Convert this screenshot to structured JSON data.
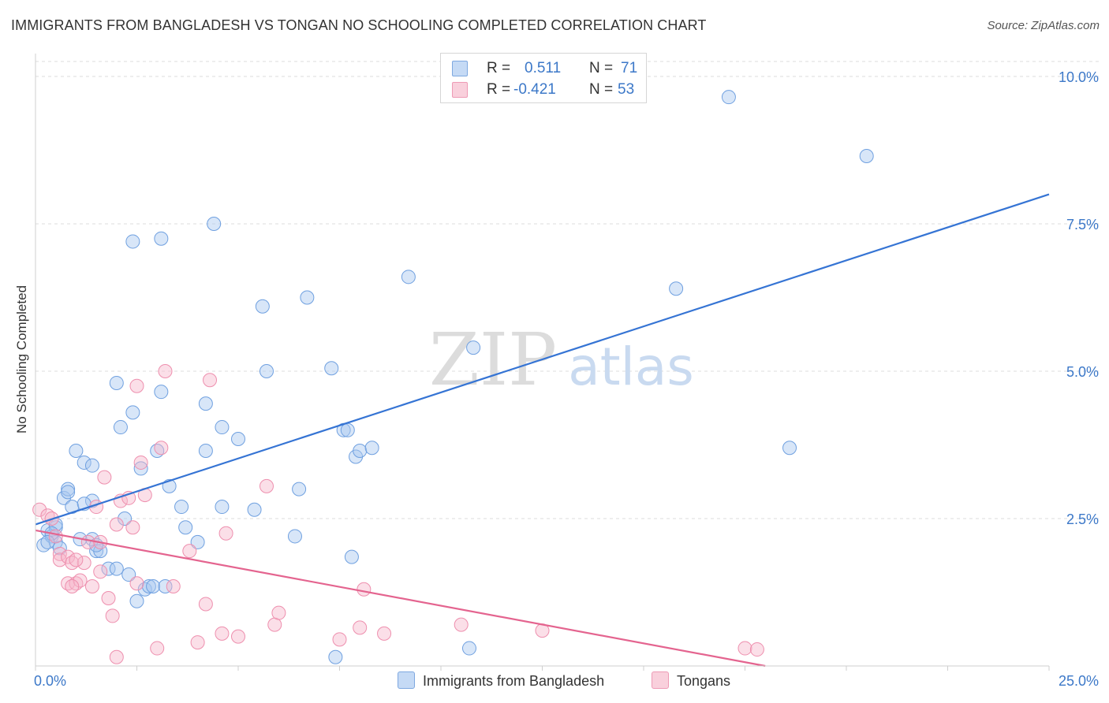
{
  "header": {
    "title": "IMMIGRANTS FROM BANGLADESH VS TONGAN NO SCHOOLING COMPLETED CORRELATION CHART",
    "source": "Source: ZipAtlas.com"
  },
  "watermark": {
    "zip": "ZIP",
    "atlas": "atlas"
  },
  "legend": {
    "rows": [
      {
        "r_label": "R =",
        "r_value": "0.511",
        "n_label": "N =",
        "n_value": "71",
        "color": "#a9c8f0"
      },
      {
        "r_label": "R =",
        "r_value": "-0.421",
        "n_label": "N =",
        "n_value": "53",
        "color": "#f6b8cc"
      }
    ]
  },
  "chart_data": {
    "type": "scatter",
    "title": "IMMIGRANTS FROM BANGLADESH VS TONGAN NO SCHOOLING COMPLETED CORRELATION CHART",
    "xlabel": "",
    "ylabel": "No Schooling Completed",
    "xlim": [
      0,
      25
    ],
    "ylim": [
      0,
      10
    ],
    "x_tick_labels": [
      "0.0%",
      "25.0%"
    ],
    "y_ticks": [
      2.5,
      5.0,
      7.5,
      10.0
    ],
    "y_tick_labels": [
      "2.5%",
      "5.0%",
      "7.5%",
      "10.0%"
    ],
    "grid": true,
    "legend_position": "top-center",
    "series": [
      {
        "name": "Immigrants from Bangladesh",
        "color": "#6fa0e0",
        "fill": "#a9c8f0",
        "trend_color": "#3574d4",
        "trend": [
          [
            0,
            2.4
          ],
          [
            25,
            8.0
          ]
        ],
        "points": [
          [
            0.2,
            2.05
          ],
          [
            0.3,
            2.3
          ],
          [
            0.4,
            2.2
          ],
          [
            0.5,
            2.1
          ],
          [
            0.5,
            2.35
          ],
          [
            0.6,
            2.0
          ],
          [
            0.7,
            2.85
          ],
          [
            0.8,
            3.0
          ],
          [
            0.8,
            2.95
          ],
          [
            1.0,
            3.65
          ],
          [
            1.2,
            3.45
          ],
          [
            0.9,
            2.7
          ],
          [
            1.4,
            3.4
          ],
          [
            1.4,
            2.8
          ],
          [
            1.4,
            2.15
          ],
          [
            1.5,
            1.95
          ],
          [
            1.6,
            1.95
          ],
          [
            1.8,
            1.65
          ],
          [
            2.0,
            1.65
          ],
          [
            2.0,
            4.8
          ],
          [
            2.1,
            4.05
          ],
          [
            2.3,
            1.55
          ],
          [
            2.4,
            4.3
          ],
          [
            2.5,
            1.1
          ],
          [
            2.6,
            3.35
          ],
          [
            2.7,
            1.3
          ],
          [
            2.8,
            1.35
          ],
          [
            2.9,
            1.35
          ],
          [
            3.2,
            1.35
          ],
          [
            3.3,
            3.05
          ],
          [
            3.6,
            2.7
          ],
          [
            3.7,
            2.35
          ],
          [
            4.0,
            2.1
          ],
          [
            4.2,
            4.45
          ],
          [
            4.2,
            3.65
          ],
          [
            4.6,
            4.05
          ],
          [
            4.6,
            2.7
          ],
          [
            5.0,
            3.85
          ],
          [
            5.4,
            2.65
          ],
          [
            5.6,
            6.1
          ],
          [
            5.7,
            5.0
          ],
          [
            6.4,
            2.2
          ],
          [
            6.5,
            3.0
          ],
          [
            6.7,
            6.25
          ],
          [
            7.3,
            5.05
          ],
          [
            7.4,
            0.15
          ],
          [
            7.6,
            4.0
          ],
          [
            7.7,
            4.0
          ],
          [
            7.8,
            1.85
          ],
          [
            7.9,
            3.55
          ],
          [
            8.0,
            3.65
          ],
          [
            8.3,
            3.7
          ],
          [
            9.2,
            6.6
          ],
          [
            10.8,
            5.4
          ],
          [
            2.4,
            7.2
          ],
          [
            3.1,
            7.25
          ],
          [
            4.4,
            7.5
          ],
          [
            17.1,
            9.65
          ],
          [
            20.5,
            8.65
          ],
          [
            15.8,
            6.4
          ],
          [
            18.6,
            3.7
          ],
          [
            10.7,
            0.3
          ],
          [
            1.1,
            2.15
          ],
          [
            1.5,
            2.05
          ],
          [
            2.2,
            2.5
          ],
          [
            3.0,
            3.65
          ],
          [
            3.1,
            4.65
          ],
          [
            1.2,
            2.75
          ],
          [
            0.5,
            2.4
          ],
          [
            0.4,
            2.25
          ],
          [
            0.3,
            2.1
          ]
        ]
      },
      {
        "name": "Tongans",
        "color": "#ee8fae",
        "fill": "#f6b8cc",
        "trend_color": "#e4648f",
        "trend": [
          [
            0,
            2.3
          ],
          [
            18,
            0
          ]
        ],
        "points": [
          [
            0.1,
            2.65
          ],
          [
            0.3,
            2.55
          ],
          [
            0.4,
            2.5
          ],
          [
            0.5,
            2.2
          ],
          [
            0.6,
            1.9
          ],
          [
            0.6,
            1.8
          ],
          [
            0.8,
            1.85
          ],
          [
            0.8,
            1.4
          ],
          [
            0.9,
            1.75
          ],
          [
            1.0,
            1.4
          ],
          [
            1.1,
            1.45
          ],
          [
            1.2,
            1.75
          ],
          [
            1.3,
            2.1
          ],
          [
            1.4,
            1.35
          ],
          [
            1.5,
            2.7
          ],
          [
            1.6,
            2.1
          ],
          [
            1.6,
            1.6
          ],
          [
            1.7,
            3.2
          ],
          [
            1.8,
            1.15
          ],
          [
            1.9,
            0.85
          ],
          [
            2.0,
            0.15
          ],
          [
            2.0,
            2.4
          ],
          [
            2.1,
            2.8
          ],
          [
            2.3,
            2.85
          ],
          [
            2.4,
            2.35
          ],
          [
            2.5,
            1.4
          ],
          [
            2.5,
            4.75
          ],
          [
            2.6,
            3.45
          ],
          [
            2.7,
            2.9
          ],
          [
            3.0,
            0.3
          ],
          [
            3.1,
            3.7
          ],
          [
            3.2,
            5.0
          ],
          [
            3.4,
            1.35
          ],
          [
            3.8,
            1.95
          ],
          [
            4.0,
            0.4
          ],
          [
            4.2,
            1.05
          ],
          [
            4.3,
            4.85
          ],
          [
            4.6,
            0.55
          ],
          [
            4.7,
            2.25
          ],
          [
            5.0,
            0.5
          ],
          [
            5.7,
            3.05
          ],
          [
            5.9,
            0.7
          ],
          [
            6.0,
            0.9
          ],
          [
            7.5,
            0.45
          ],
          [
            8.0,
            0.65
          ],
          [
            8.1,
            1.3
          ],
          [
            8.6,
            0.55
          ],
          [
            10.5,
            0.7
          ],
          [
            12.5,
            0.6
          ],
          [
            17.5,
            0.3
          ],
          [
            17.8,
            0.28
          ],
          [
            1.0,
            1.8
          ],
          [
            0.9,
            1.35
          ]
        ]
      }
    ]
  }
}
